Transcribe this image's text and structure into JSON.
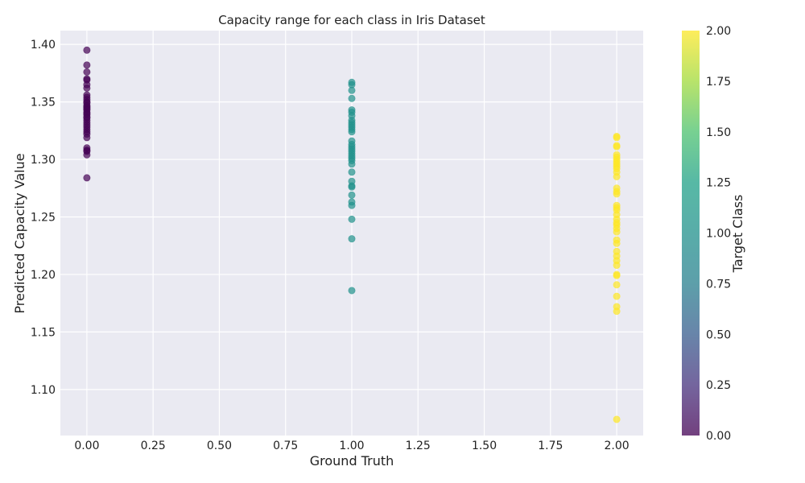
{
  "chart_data": {
    "type": "scatter",
    "title": "Capacity range for each class in Iris Dataset",
    "xlabel": "Ground Truth",
    "ylabel": "Predicted Capacity Value",
    "xlim": [
      -0.1,
      2.1
    ],
    "ylim": [
      1.06,
      1.412
    ],
    "xticks": [
      0.0,
      0.25,
      0.5,
      0.75,
      1.0,
      1.25,
      1.5,
      1.75,
      2.0
    ],
    "xtick_labels": [
      "0.00",
      "0.25",
      "0.50",
      "0.75",
      "1.00",
      "1.25",
      "1.50",
      "1.75",
      "2.00"
    ],
    "yticks": [
      1.1,
      1.15,
      1.2,
      1.25,
      1.3,
      1.35,
      1.4
    ],
    "ytick_labels": [
      "1.10",
      "1.15",
      "1.20",
      "1.25",
      "1.30",
      "1.35",
      "1.40"
    ],
    "grid": true,
    "colormap": "viridis",
    "marker_alpha": 0.7,
    "colorbar": {
      "label": "Target Class",
      "range": [
        0.0,
        2.0
      ],
      "ticks": [
        0.0,
        0.25,
        0.5,
        0.75,
        1.0,
        1.25,
        1.5,
        1.75,
        2.0
      ],
      "tick_labels": [
        "0.00",
        "0.25",
        "0.50",
        "0.75",
        "1.00",
        "1.25",
        "1.50",
        "1.75",
        "2.00"
      ],
      "placement": "right"
    },
    "colors": {
      "background": "#eaeaf2",
      "grid": "#ffffff",
      "class_0": "#440154",
      "class_1": "#21918c",
      "class_2": "#fde725"
    },
    "series": [
      {
        "x": 0,
        "values": [
          1.395,
          1.382,
          1.376,
          1.37,
          1.369,
          1.365,
          1.362,
          1.356,
          1.354,
          1.352,
          1.35,
          1.349,
          1.347,
          1.346,
          1.345,
          1.344,
          1.343,
          1.341,
          1.34,
          1.339,
          1.337,
          1.336,
          1.334,
          1.332,
          1.33,
          1.328,
          1.326,
          1.324,
          1.322,
          1.319,
          1.31,
          1.308,
          1.307,
          1.304,
          1.284
        ]
      },
      {
        "x": 1,
        "values": [
          1.367,
          1.365,
          1.36,
          1.353,
          1.343,
          1.341,
          1.338,
          1.334,
          1.332,
          1.33,
          1.328,
          1.326,
          1.324,
          1.316,
          1.313,
          1.311,
          1.309,
          1.307,
          1.305,
          1.303,
          1.301,
          1.299,
          1.296,
          1.289,
          1.281,
          1.277,
          1.276,
          1.269,
          1.263,
          1.26,
          1.248,
          1.231,
          1.186
        ]
      },
      {
        "x": 2,
        "values": [
          1.32,
          1.319,
          1.312,
          1.311,
          1.304,
          1.302,
          1.3,
          1.298,
          1.296,
          1.294,
          1.292,
          1.289,
          1.285,
          1.275,
          1.272,
          1.27,
          1.26,
          1.258,
          1.256,
          1.252,
          1.248,
          1.245,
          1.243,
          1.24,
          1.237,
          1.23,
          1.227,
          1.22,
          1.216,
          1.212,
          1.208,
          1.2,
          1.199,
          1.191,
          1.181,
          1.172,
          1.168,
          1.074
        ]
      }
    ]
  }
}
